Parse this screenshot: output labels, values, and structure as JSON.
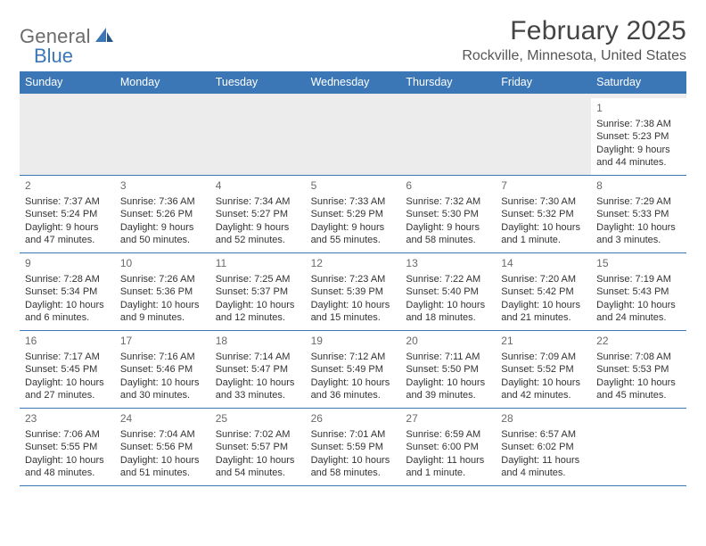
{
  "brand": {
    "name_part1": "General",
    "name_part2": "Blue",
    "text_color": "#6b6b6b",
    "accent_color": "#3b77b7"
  },
  "title": "February 2025",
  "subtitle": "Rockville, Minnesota, United States",
  "colors": {
    "header_bg": "#3b77b7",
    "header_text": "#ffffff",
    "rule": "#3b77b7",
    "empty_bg": "#ececec",
    "text": "#333333",
    "daynum": "#6a6a6a"
  },
  "day_names": [
    "Sunday",
    "Monday",
    "Tuesday",
    "Wednesday",
    "Thursday",
    "Friday",
    "Saturday"
  ],
  "weeks": [
    [
      null,
      null,
      null,
      null,
      null,
      null,
      {
        "n": "1",
        "lines": [
          "Sunrise: 7:38 AM",
          "Sunset: 5:23 PM",
          "Daylight: 9 hours",
          "and 44 minutes."
        ]
      }
    ],
    [
      {
        "n": "2",
        "lines": [
          "Sunrise: 7:37 AM",
          "Sunset: 5:24 PM",
          "Daylight: 9 hours",
          "and 47 minutes."
        ]
      },
      {
        "n": "3",
        "lines": [
          "Sunrise: 7:36 AM",
          "Sunset: 5:26 PM",
          "Daylight: 9 hours",
          "and 50 minutes."
        ]
      },
      {
        "n": "4",
        "lines": [
          "Sunrise: 7:34 AM",
          "Sunset: 5:27 PM",
          "Daylight: 9 hours",
          "and 52 minutes."
        ]
      },
      {
        "n": "5",
        "lines": [
          "Sunrise: 7:33 AM",
          "Sunset: 5:29 PM",
          "Daylight: 9 hours",
          "and 55 minutes."
        ]
      },
      {
        "n": "6",
        "lines": [
          "Sunrise: 7:32 AM",
          "Sunset: 5:30 PM",
          "Daylight: 9 hours",
          "and 58 minutes."
        ]
      },
      {
        "n": "7",
        "lines": [
          "Sunrise: 7:30 AM",
          "Sunset: 5:32 PM",
          "Daylight: 10 hours",
          "and 1 minute."
        ]
      },
      {
        "n": "8",
        "lines": [
          "Sunrise: 7:29 AM",
          "Sunset: 5:33 PM",
          "Daylight: 10 hours",
          "and 3 minutes."
        ]
      }
    ],
    [
      {
        "n": "9",
        "lines": [
          "Sunrise: 7:28 AM",
          "Sunset: 5:34 PM",
          "Daylight: 10 hours",
          "and 6 minutes."
        ]
      },
      {
        "n": "10",
        "lines": [
          "Sunrise: 7:26 AM",
          "Sunset: 5:36 PM",
          "Daylight: 10 hours",
          "and 9 minutes."
        ]
      },
      {
        "n": "11",
        "lines": [
          "Sunrise: 7:25 AM",
          "Sunset: 5:37 PM",
          "Daylight: 10 hours",
          "and 12 minutes."
        ]
      },
      {
        "n": "12",
        "lines": [
          "Sunrise: 7:23 AM",
          "Sunset: 5:39 PM",
          "Daylight: 10 hours",
          "and 15 minutes."
        ]
      },
      {
        "n": "13",
        "lines": [
          "Sunrise: 7:22 AM",
          "Sunset: 5:40 PM",
          "Daylight: 10 hours",
          "and 18 minutes."
        ]
      },
      {
        "n": "14",
        "lines": [
          "Sunrise: 7:20 AM",
          "Sunset: 5:42 PM",
          "Daylight: 10 hours",
          "and 21 minutes."
        ]
      },
      {
        "n": "15",
        "lines": [
          "Sunrise: 7:19 AM",
          "Sunset: 5:43 PM",
          "Daylight: 10 hours",
          "and 24 minutes."
        ]
      }
    ],
    [
      {
        "n": "16",
        "lines": [
          "Sunrise: 7:17 AM",
          "Sunset: 5:45 PM",
          "Daylight: 10 hours",
          "and 27 minutes."
        ]
      },
      {
        "n": "17",
        "lines": [
          "Sunrise: 7:16 AM",
          "Sunset: 5:46 PM",
          "Daylight: 10 hours",
          "and 30 minutes."
        ]
      },
      {
        "n": "18",
        "lines": [
          "Sunrise: 7:14 AM",
          "Sunset: 5:47 PM",
          "Daylight: 10 hours",
          "and 33 minutes."
        ]
      },
      {
        "n": "19",
        "lines": [
          "Sunrise: 7:12 AM",
          "Sunset: 5:49 PM",
          "Daylight: 10 hours",
          "and 36 minutes."
        ]
      },
      {
        "n": "20",
        "lines": [
          "Sunrise: 7:11 AM",
          "Sunset: 5:50 PM",
          "Daylight: 10 hours",
          "and 39 minutes."
        ]
      },
      {
        "n": "21",
        "lines": [
          "Sunrise: 7:09 AM",
          "Sunset: 5:52 PM",
          "Daylight: 10 hours",
          "and 42 minutes."
        ]
      },
      {
        "n": "22",
        "lines": [
          "Sunrise: 7:08 AM",
          "Sunset: 5:53 PM",
          "Daylight: 10 hours",
          "and 45 minutes."
        ]
      }
    ],
    [
      {
        "n": "23",
        "lines": [
          "Sunrise: 7:06 AM",
          "Sunset: 5:55 PM",
          "Daylight: 10 hours",
          "and 48 minutes."
        ]
      },
      {
        "n": "24",
        "lines": [
          "Sunrise: 7:04 AM",
          "Sunset: 5:56 PM",
          "Daylight: 10 hours",
          "and 51 minutes."
        ]
      },
      {
        "n": "25",
        "lines": [
          "Sunrise: 7:02 AM",
          "Sunset: 5:57 PM",
          "Daylight: 10 hours",
          "and 54 minutes."
        ]
      },
      {
        "n": "26",
        "lines": [
          "Sunrise: 7:01 AM",
          "Sunset: 5:59 PM",
          "Daylight: 10 hours",
          "and 58 minutes."
        ]
      },
      {
        "n": "27",
        "lines": [
          "Sunrise: 6:59 AM",
          "Sunset: 6:00 PM",
          "Daylight: 11 hours",
          "and 1 minute."
        ]
      },
      {
        "n": "28",
        "lines": [
          "Sunrise: 6:57 AM",
          "Sunset: 6:02 PM",
          "Daylight: 11 hours",
          "and 4 minutes."
        ]
      },
      null
    ]
  ]
}
